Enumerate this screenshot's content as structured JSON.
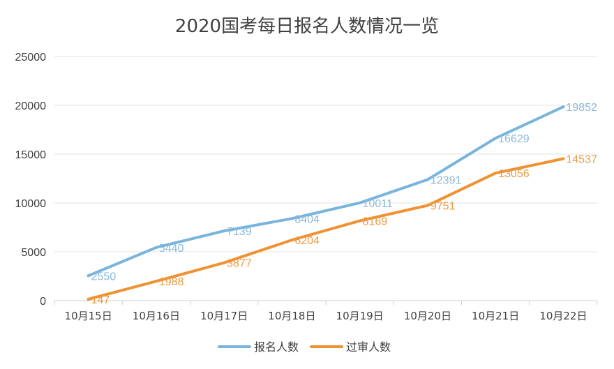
{
  "chart_data": {
    "type": "line",
    "title": "2020国考每日报名人数情况一览",
    "categories": [
      "10月15日",
      "10月16日",
      "10月17日",
      "10月18日",
      "10月19日",
      "10月20日",
      "10月21日",
      "10月22日"
    ],
    "series": [
      {
        "name": "报名人数",
        "color": "#79b4dc",
        "label_color": "#8bbad9",
        "values": [
          2550,
          5440,
          7139,
          8404,
          10011,
          12391,
          16629,
          19852
        ]
      },
      {
        "name": "过审人数",
        "color": "#ef9234",
        "label_color": "#eb9a44",
        "values": [
          147,
          1988,
          3877,
          6204,
          8169,
          9751,
          13056,
          14537
        ]
      }
    ],
    "ylim": [
      0,
      25000
    ],
    "yticks": [
      "0",
      "5000",
      "10000",
      "15000",
      "20000",
      "25000"
    ],
    "grid": true,
    "legend": "bottom"
  }
}
